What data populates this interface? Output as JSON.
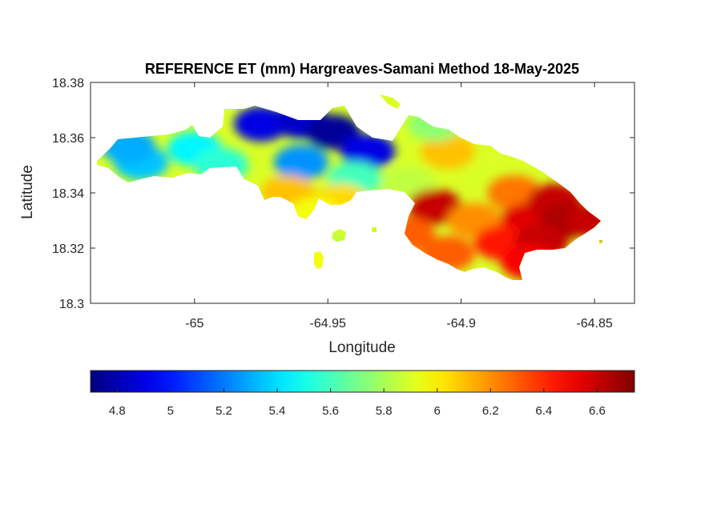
{
  "chart_data": {
    "type": "heatmap",
    "title": "REFERENCE ET (mm) Hargreaves-Samani Method  18-May-2025",
    "xlabel": "Longitude",
    "ylabel": "Latitude",
    "xlim": [
      -65.039,
      -64.835
    ],
    "ylim": [
      18.3,
      18.38
    ],
    "xticks": [
      -65,
      -64.95,
      -64.9,
      -64.85
    ],
    "xtick_labels": [
      "-65",
      "-64.95",
      "-64.9",
      "-64.85"
    ],
    "yticks": [
      18.3,
      18.32,
      18.34,
      18.36,
      18.38
    ],
    "ytick_labels": [
      "18.3",
      "18.32",
      "18.34",
      "18.36",
      "18.38"
    ],
    "colormap": "jet",
    "clim": [
      4.7,
      6.74
    ],
    "colorbar_ticks": [
      4.8,
      5,
      5.2,
      5.4,
      5.6,
      5.8,
      6,
      6.2,
      6.4,
      6.6
    ],
    "colorbar_tick_labels": [
      "4.8",
      "5",
      "5.2",
      "5.4",
      "5.6",
      "5.8",
      "6",
      "6.2",
      "6.4",
      "6.6"
    ],
    "colorbar_location": "southoutside",
    "grid": false,
    "regions": [
      {
        "lon": -65.02,
        "lat": 18.351,
        "value": 5.35
      },
      {
        "lon": -65.025,
        "lat": 18.357,
        "value": 5.3
      },
      {
        "lon": -65.0,
        "lat": 18.356,
        "value": 5.45
      },
      {
        "lon": -64.99,
        "lat": 18.35,
        "value": 5.55
      },
      {
        "lon": -64.975,
        "lat": 18.365,
        "value": 4.9
      },
      {
        "lon": -64.96,
        "lat": 18.366,
        "value": 4.85
      },
      {
        "lon": -64.948,
        "lat": 18.362,
        "value": 4.75
      },
      {
        "lon": -64.935,
        "lat": 18.355,
        "value": 4.9
      },
      {
        "lon": -64.96,
        "lat": 18.351,
        "value": 5.25
      },
      {
        "lon": -64.94,
        "lat": 18.345,
        "value": 5.6
      },
      {
        "lon": -64.965,
        "lat": 18.34,
        "value": 6.1
      },
      {
        "lon": -64.945,
        "lat": 18.337,
        "value": 6.05
      },
      {
        "lon": -64.955,
        "lat": 18.332,
        "value": 5.95
      },
      {
        "lon": -64.92,
        "lat": 18.343,
        "value": 5.85
      },
      {
        "lon": -64.905,
        "lat": 18.355,
        "value": 6.1
      },
      {
        "lon": -64.91,
        "lat": 18.365,
        "value": 5.75
      },
      {
        "lon": -64.91,
        "lat": 18.335,
        "value": 6.6
      },
      {
        "lon": -64.895,
        "lat": 18.33,
        "value": 6.2
      },
      {
        "lon": -64.88,
        "lat": 18.34,
        "value": 6.25
      },
      {
        "lon": -64.875,
        "lat": 18.33,
        "value": 6.55
      },
      {
        "lon": -64.865,
        "lat": 18.337,
        "value": 6.6
      },
      {
        "lon": -64.86,
        "lat": 18.33,
        "value": 6.65
      },
      {
        "lon": -64.905,
        "lat": 18.318,
        "value": 6.3
      },
      {
        "lon": -64.885,
        "lat": 18.322,
        "value": 6.45
      },
      {
        "lon": -64.87,
        "lat": 18.322,
        "value": 6.6
      },
      {
        "lon": -64.875,
        "lat": 18.315,
        "value": 6.5
      },
      {
        "lon": -64.92,
        "lat": 18.325,
        "value": 6.3
      },
      {
        "lon": -64.85,
        "lat": 18.33,
        "value": 6.6
      },
      {
        "lon": -64.95,
        "lat": 18.32,
        "value": 5.85
      },
      {
        "lon": -64.955,
        "lat": 18.315,
        "value": 5.95
      }
    ]
  }
}
